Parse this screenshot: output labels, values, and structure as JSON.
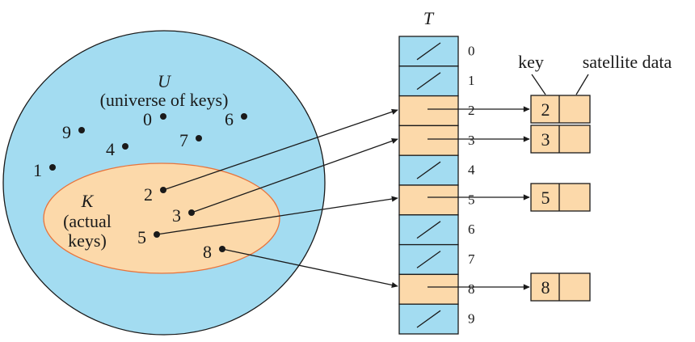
{
  "colors": {
    "universe_fill": "#a3dcf1",
    "keys_fill": "#fcd9aa",
    "keys_stroke": "#e8743c",
    "stroke": "#1a1a1a"
  },
  "universe": {
    "symbol": "U",
    "caption": "(universe of keys)",
    "unused_keys": [
      "0",
      "6",
      "9",
      "4",
      "7",
      "1"
    ]
  },
  "actual": {
    "symbol": "K",
    "caption_line1": "(actual",
    "caption_line2": "keys)",
    "keys": [
      "2",
      "3",
      "5",
      "8"
    ]
  },
  "table": {
    "name": "T",
    "indices": [
      "0",
      "1",
      "2",
      "3",
      "4",
      "5",
      "6",
      "7",
      "8",
      "9"
    ],
    "occupied": [
      false,
      false,
      true,
      true,
      false,
      true,
      false,
      false,
      true,
      false
    ]
  },
  "elements": {
    "key_label": "key",
    "satellite_label": "satellite data",
    "keys": [
      "2",
      "3",
      "5",
      "8"
    ]
  }
}
